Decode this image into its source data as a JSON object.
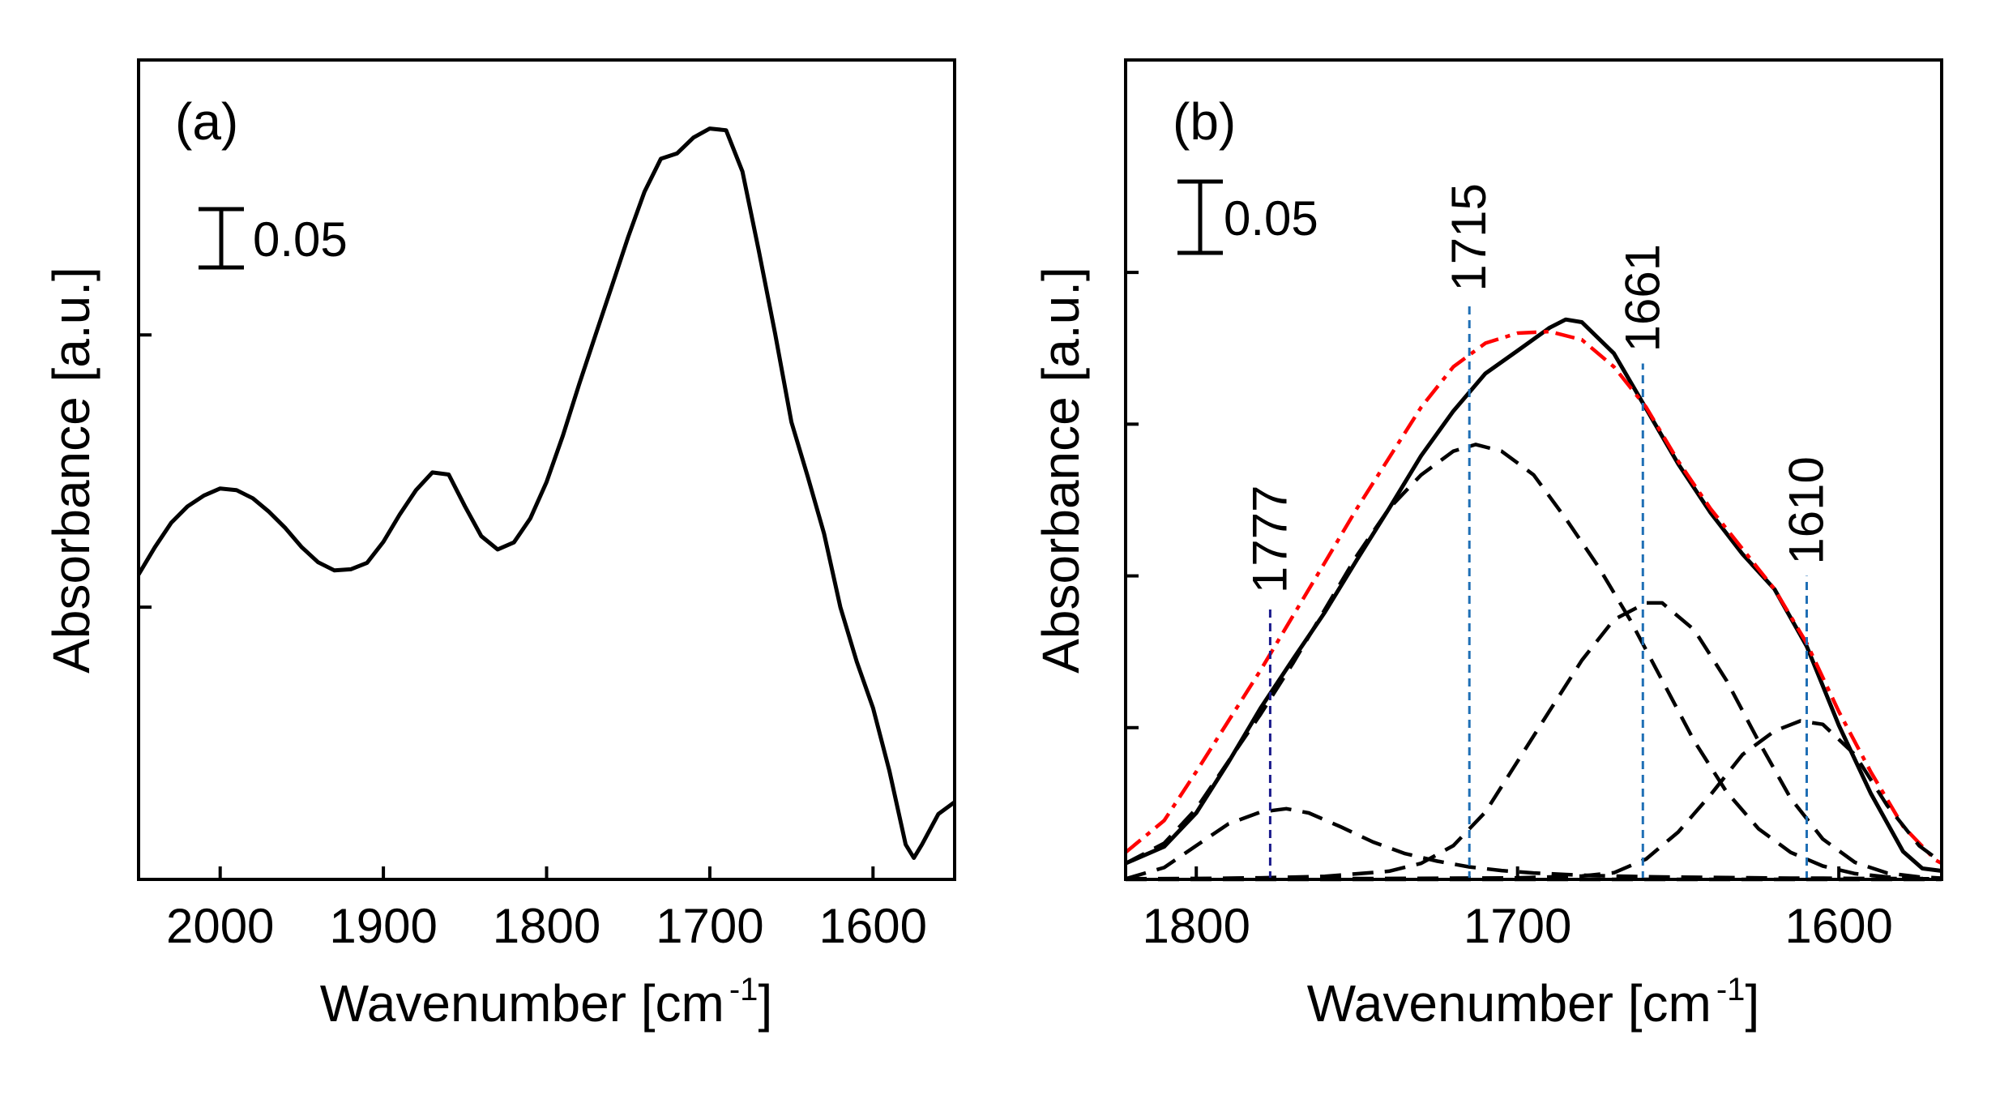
{
  "chart_data": [
    {
      "type": "line",
      "panel_label": "(a)",
      "xlabel": "Wavenumber [cm",
      "xlabel_sup": "-1",
      "xlabel_end": "]",
      "ylabel": "Absorbance [a.u.]",
      "x_reversed": true,
      "xlim": [
        2050,
        1550
      ],
      "ylim": [
        0,
        0.301
      ],
      "x_ticks": [
        2000,
        1900,
        1800,
        1700,
        1600
      ],
      "x_tick_labels": [
        "2000",
        "1900",
        "1800",
        "1700",
        "1600"
      ],
      "y_ticks_unlabeled": [
        0.1,
        0.2
      ],
      "scale_bar": {
        "value": 0.05,
        "label": "0.05"
      },
      "series": [
        {
          "name": "spectrum",
          "color": "#000000",
          "style": "solid",
          "x": [
            2050,
            2040,
            2030,
            2020,
            2010,
            2000,
            1990,
            1980,
            1970,
            1960,
            1950,
            1940,
            1930,
            1920,
            1910,
            1900,
            1890,
            1880,
            1870,
            1860,
            1850,
            1840,
            1830,
            1820,
            1810,
            1800,
            1790,
            1780,
            1770,
            1760,
            1750,
            1740,
            1730,
            1720,
            1710,
            1700,
            1690,
            1680,
            1670,
            1660,
            1650,
            1640,
            1630,
            1620,
            1610,
            1600,
            1590,
            1580,
            1575,
            1570,
            1560,
            1550
          ],
          "y": [
            0.112,
            0.122,
            0.131,
            0.137,
            0.141,
            0.1436,
            0.143,
            0.14,
            0.135,
            0.129,
            0.122,
            0.1165,
            0.1135,
            0.1139,
            0.1163,
            0.124,
            0.134,
            0.143,
            0.1495,
            0.1487,
            0.137,
            0.1261,
            0.1212,
            0.1238,
            0.1326,
            0.146,
            0.163,
            0.182,
            0.2,
            0.218,
            0.236,
            0.2526,
            0.2647,
            0.2667,
            0.2725,
            0.2758,
            0.2752,
            0.26,
            0.231,
            0.2005,
            0.168,
            0.148,
            0.127,
            0.1,
            0.08,
            0.063,
            0.04,
            0.0128,
            0.0079,
            0.0128,
            0.024,
            0.0284
          ]
        }
      ]
    },
    {
      "type": "line",
      "panel_label": "(b)",
      "xlabel": "Wavenumber [cm",
      "xlabel_sup": "-1",
      "xlabel_end": "]",
      "ylabel": "Absorbance [a.u.]",
      "x_reversed": true,
      "xlim": [
        1822,
        1568
      ],
      "ylim": [
        0,
        0.27
      ],
      "x_ticks": [
        1800,
        1700,
        1600
      ],
      "x_tick_labels": [
        "1800",
        "1700",
        "1600"
      ],
      "y_ticks_unlabeled": [
        0.05,
        0.1,
        0.15,
        0.2
      ],
      "scale_bar": {
        "value": 0.05,
        "label": "0.05"
      },
      "peak_markers": [
        {
          "label": "1777",
          "x": 1777,
          "y_top": 0.0905
        },
        {
          "label": "1715",
          "x": 1715,
          "y_top": 0.19
        },
        {
          "label": "1661",
          "x": 1661,
          "y_top": 0.17
        },
        {
          "label": "1610",
          "x": 1610,
          "y_top": 0.1
        }
      ],
      "series": [
        {
          "name": "measured",
          "color": "#000000",
          "style": "solid",
          "x": [
            1822,
            1810,
            1800,
            1790,
            1780,
            1770,
            1760,
            1750,
            1740,
            1730,
            1720,
            1710,
            1700,
            1690,
            1685,
            1680,
            1670,
            1660,
            1650,
            1640,
            1630,
            1620,
            1610,
            1600,
            1590,
            1580,
            1574,
            1568
          ],
          "y": [
            0.0053,
            0.0108,
            0.0219,
            0.0386,
            0.0564,
            0.0724,
            0.088,
            0.1053,
            0.1222,
            0.1396,
            0.1543,
            0.1667,
            0.1742,
            0.1818,
            0.1845,
            0.1836,
            0.1733,
            0.1551,
            0.1369,
            0.1209,
            0.1072,
            0.0956,
            0.0768,
            0.0508,
            0.0282,
            0.0092,
            0.0036,
            0.0028
          ]
        },
        {
          "name": "fit",
          "color": "#ff0000",
          "style": "dash-dot",
          "x": [
            1822,
            1810,
            1800,
            1790,
            1780,
            1770,
            1760,
            1750,
            1740,
            1730,
            1720,
            1710,
            1700,
            1690,
            1680,
            1670,
            1660,
            1650,
            1640,
            1630,
            1620,
            1610,
            1600,
            1590,
            1580,
            1570,
            1568
          ],
          "y": [
            0.0089,
            0.0194,
            0.0355,
            0.0522,
            0.0689,
            0.0867,
            0.1044,
            0.1222,
            0.1389,
            0.1556,
            0.1689,
            0.1767,
            0.18,
            0.1805,
            0.1778,
            0.1689,
            0.1556,
            0.1378,
            0.1222,
            0.1089,
            0.0956,
            0.0778,
            0.0553,
            0.0353,
            0.0175,
            0.0064,
            0.0053
          ]
        },
        {
          "name": "component 1777",
          "color": "#000000",
          "style": "dashed",
          "x": [
            1822,
            1810,
            1800,
            1790,
            1780,
            1772,
            1765,
            1755,
            1745,
            1735,
            1725,
            1715,
            1705,
            1695,
            1685,
            1675,
            1665,
            1655,
            1645,
            1635,
            1625,
            1615,
            1605,
            1595,
            1585,
            1575,
            1568
          ],
          "y": [
            0.0002,
            0.0039,
            0.0111,
            0.0183,
            0.0222,
            0.0233,
            0.0219,
            0.0173,
            0.0123,
            0.0085,
            0.006,
            0.0041,
            0.0029,
            0.0021,
            0.0016,
            0.0012,
            0.001,
            0.0008,
            0.0007,
            0.0006,
            0.0005,
            0.0004,
            0.0004,
            0.0003,
            0.0003,
            0.0002,
            0.0002
          ]
        },
        {
          "name": "component 1715",
          "color": "#000000",
          "style": "dashed",
          "x": [
            1822,
            1810,
            1800,
            1790,
            1780,
            1770,
            1760,
            1750,
            1740,
            1730,
            1720,
            1713,
            1705,
            1695,
            1685,
            1675,
            1665,
            1655,
            1645,
            1635,
            1625,
            1615,
            1605,
            1595,
            1585,
            1575,
            1568
          ],
          "y": [
            0.0053,
            0.0119,
            0.0233,
            0.0389,
            0.0544,
            0.0711,
            0.0889,
            0.1067,
            0.1222,
            0.1333,
            0.1411,
            0.1433,
            0.1411,
            0.1333,
            0.1189,
            0.1033,
            0.0856,
            0.0656,
            0.0456,
            0.0289,
            0.0167,
            0.0089,
            0.0044,
            0.0019,
            0.0008,
            0.0003,
            0.0002
          ]
        },
        {
          "name": "component 1661",
          "color": "#000000",
          "style": "dashed",
          "x": [
            1822,
            1800,
            1780,
            1760,
            1740,
            1730,
            1720,
            1710,
            1700,
            1690,
            1680,
            1670,
            1660,
            1655,
            1645,
            1635,
            1625,
            1615,
            1605,
            1595,
            1585,
            1575,
            1568
          ],
          "y": [
            0.0002,
            0.0003,
            0.0005,
            0.001,
            0.0027,
            0.0053,
            0.0111,
            0.0222,
            0.0389,
            0.0556,
            0.0722,
            0.0856,
            0.0911,
            0.0911,
            0.0822,
            0.0656,
            0.0456,
            0.0267,
            0.0133,
            0.0056,
            0.0021,
            0.0008,
            0.0004
          ]
        },
        {
          "name": "component 1610",
          "color": "#000000",
          "style": "dashed",
          "x": [
            1822,
            1780,
            1740,
            1700,
            1680,
            1670,
            1660,
            1650,
            1640,
            1630,
            1620,
            1612,
            1605,
            1595,
            1585,
            1575,
            1568
          ],
          "y": [
            0.0002,
            0.0002,
            0.0003,
            0.0005,
            0.0011,
            0.0022,
            0.0067,
            0.0156,
            0.0278,
            0.0411,
            0.0489,
            0.0522,
            0.0511,
            0.0411,
            0.0244,
            0.0111,
            0.0056
          ]
        },
        {
          "name": "baseline",
          "color": "#000000",
          "style": "dashed",
          "x": [
            1822,
            1568
          ],
          "y": [
            0,
            0
          ]
        }
      ]
    }
  ]
}
